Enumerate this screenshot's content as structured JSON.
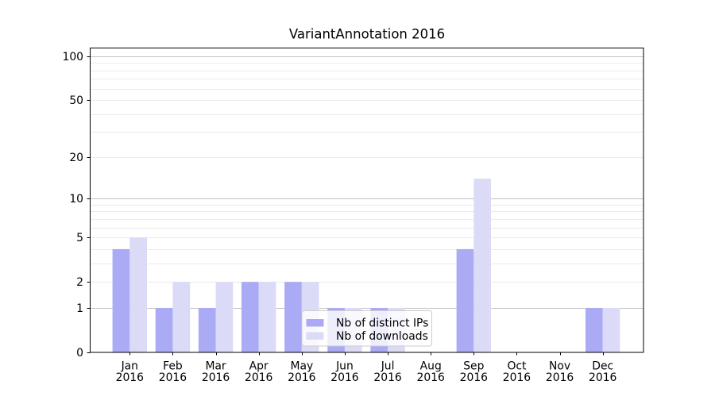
{
  "chart_data": {
    "type": "bar",
    "title": "VariantAnnotation 2016",
    "categories": [
      {
        "month": "Jan",
        "year": "2016"
      },
      {
        "month": "Feb",
        "year": "2016"
      },
      {
        "month": "Mar",
        "year": "2016"
      },
      {
        "month": "Apr",
        "year": "2016"
      },
      {
        "month": "May",
        "year": "2016"
      },
      {
        "month": "Jun",
        "year": "2016"
      },
      {
        "month": "Jul",
        "year": "2016"
      },
      {
        "month": "Aug",
        "year": "2016"
      },
      {
        "month": "Sep",
        "year": "2016"
      },
      {
        "month": "Oct",
        "year": "2016"
      },
      {
        "month": "Nov",
        "year": "2016"
      },
      {
        "month": "Dec",
        "year": "2016"
      }
    ],
    "series": [
      {
        "name": "Nb of distinct IPs",
        "color": "#aaaaf5",
        "values": [
          4,
          1,
          1,
          2,
          2,
          1,
          1,
          0,
          4,
          0,
          0,
          1
        ]
      },
      {
        "name": "Nb of downloads",
        "color": "#dbdbf8",
        "values": [
          5,
          2,
          2,
          2,
          2,
          1,
          1,
          0,
          14,
          0,
          0,
          1
        ]
      }
    ],
    "xlabel": "",
    "ylabel": "",
    "y_axis": {
      "scale": "log1p-base10",
      "ticks": [
        0,
        1,
        2,
        5,
        10,
        20,
        50,
        100
      ],
      "major_gridlines": [
        1,
        10,
        100
      ],
      "minor_gridlines": [
        2,
        3,
        4,
        5,
        6,
        7,
        8,
        9,
        20,
        30,
        40,
        50,
        60,
        70,
        80,
        90
      ],
      "range": [
        0,
        115
      ]
    },
    "grid": true,
    "legend_position": "lower center-right"
  },
  "colors": {
    "bar_distinct_ips": "#aaaaf5",
    "bar_downloads": "#dbdbf8",
    "major_grid": "#c3c3c6",
    "minor_grid": "#ebebeb",
    "spine": "#000000",
    "legend_border": "#cccccc"
  }
}
